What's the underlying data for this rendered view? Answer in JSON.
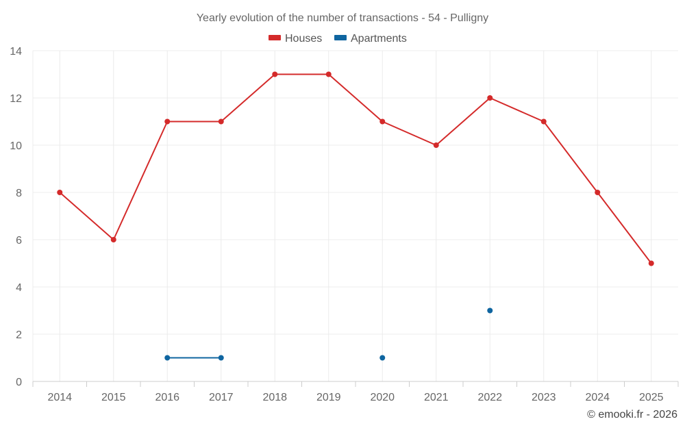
{
  "chart_data": {
    "type": "line",
    "title": "Yearly evolution of the number of transactions - 54 - Pulligny",
    "xlabel": "",
    "ylabel": "",
    "categories": [
      "2014",
      "2015",
      "2016",
      "2017",
      "2018",
      "2019",
      "2020",
      "2021",
      "2022",
      "2023",
      "2024",
      "2025"
    ],
    "ylim": [
      0,
      14
    ],
    "yticks": [
      0,
      2,
      4,
      6,
      8,
      10,
      12,
      14
    ],
    "grid": true,
    "legend_position": "top-center",
    "series": [
      {
        "name": "Houses",
        "color": "#d42a2a",
        "values": [
          8,
          6,
          11,
          11,
          13,
          13,
          11,
          10,
          12,
          11,
          8,
          5
        ]
      },
      {
        "name": "Apartments",
        "color": "#0f65a0",
        "values": [
          null,
          null,
          1,
          1,
          null,
          null,
          1,
          null,
          3,
          null,
          null,
          null
        ]
      }
    ]
  },
  "credit": "© emooki.fr - 2026"
}
